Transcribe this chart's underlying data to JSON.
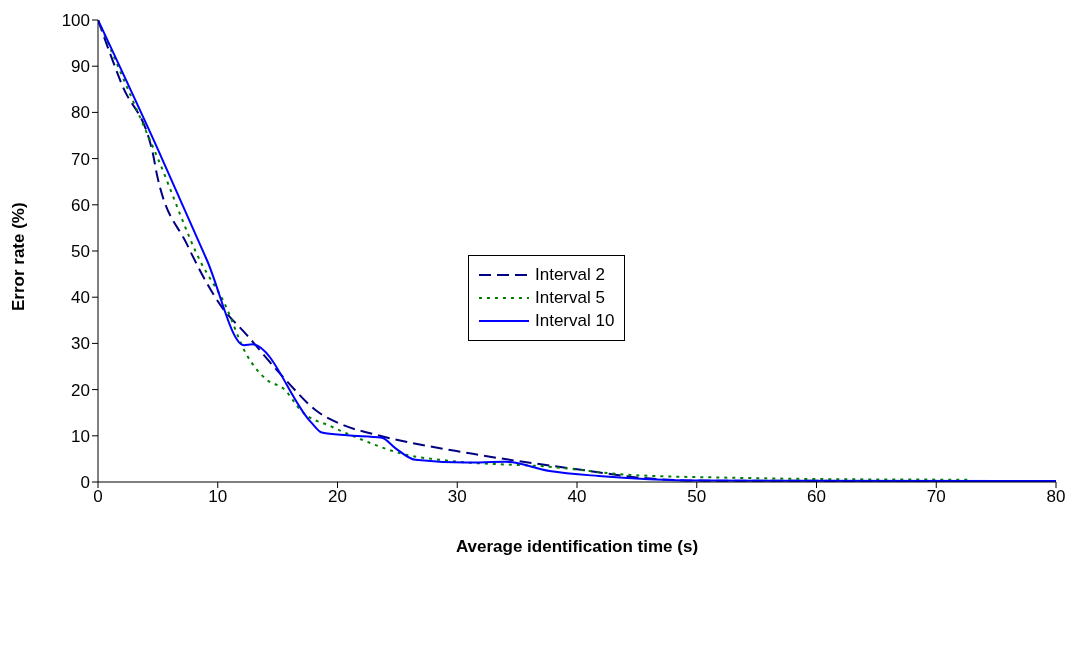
{
  "chart_data": {
    "type": "line",
    "xlabel": "Average identification time (s)",
    "ylabel": "Error rate (%)",
    "xlim": [
      0,
      80
    ],
    "xticks": [
      0,
      10,
      20,
      30,
      40,
      50,
      60,
      70,
      80
    ],
    "ylim": [
      0,
      100
    ],
    "yticks": [
      0,
      10,
      20,
      30,
      40,
      50,
      60,
      70,
      80,
      90,
      100
    ],
    "grid": false,
    "legend": "center",
    "marker": "none",
    "series": [
      {
        "name": "Interval 2",
        "color": "#000080",
        "line_style": "dashed",
        "x": [
          0,
          2,
          4.6,
          4.9,
          7.4,
          10.3,
          12.4,
          15.5,
          18.3,
          20.6,
          23.1,
          31.3,
          41,
          45,
          50,
          80
        ],
        "values": [
          100,
          86,
          70.9,
          66.8,
          51.6,
          38,
          31.9,
          22.6,
          15.3,
          12.2,
          10.3,
          6.1,
          2.4,
          1,
          0.3,
          0.2
        ]
      },
      {
        "name": "Interval 5",
        "color": "#008000",
        "line_style": "dotted",
        "x": [
          0,
          3,
          5,
          8.6,
          10.5,
          12.4,
          14.1,
          15.5,
          17,
          19.5,
          22,
          25.4,
          29.3,
          37.7,
          44.7,
          53.4,
          61.8,
          72.7
        ],
        "values": [
          100,
          82,
          70,
          47.5,
          39,
          27.6,
          22.1,
          20.2,
          15.3,
          12,
          9.2,
          6.1,
          4.6,
          3.3,
          1.5,
          0.9,
          0.6,
          0.5
        ]
      },
      {
        "name": "Interval 10",
        "color": "#0000ff",
        "line_style": "solid",
        "x": [
          0,
          5,
          9.1,
          12.2,
          12.9,
          17.8,
          18.7,
          20.8,
          23.7,
          24.8,
          26.5,
          30.7,
          34,
          37.7,
          41.8,
          46,
          50,
          80
        ],
        "values": [
          100,
          72,
          48,
          29.6,
          29.8,
          12.9,
          10.7,
          10.1,
          9.6,
          7.4,
          4.8,
          4.2,
          4.4,
          2.4,
          1.3,
          0.6,
          0.3,
          0.2
        ]
      }
    ]
  }
}
